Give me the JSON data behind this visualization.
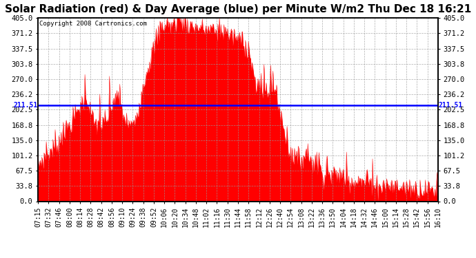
{
  "title": "Solar Radiation (red) & Day Average (blue) per Minute W/m2 Thu Dec 18 16:21",
  "copyright_text": "Copyright 2008 Cartronics.com",
  "y_min": 0.0,
  "y_max": 405.0,
  "y_ticks": [
    0.0,
    33.8,
    67.5,
    101.2,
    135.0,
    168.8,
    202.5,
    236.2,
    270.0,
    303.8,
    337.5,
    371.2,
    405.0
  ],
  "avg_value": 211.51,
  "avg_label": "211.51",
  "x_labels": [
    "07:15",
    "07:32",
    "07:46",
    "08:00",
    "08:14",
    "08:28",
    "08:42",
    "08:56",
    "09:10",
    "09:24",
    "09:38",
    "09:52",
    "10:06",
    "10:20",
    "10:34",
    "10:48",
    "11:02",
    "11:16",
    "11:30",
    "11:44",
    "11:58",
    "12:12",
    "12:26",
    "12:40",
    "12:54",
    "13:08",
    "13:22",
    "13:36",
    "13:50",
    "14:04",
    "14:18",
    "14:32",
    "14:46",
    "15:00",
    "15:14",
    "15:28",
    "15:42",
    "15:56",
    "16:10"
  ],
  "fill_color": "#FF0000",
  "line_color": "#0000FF",
  "bg_color": "#FFFFFF",
  "grid_color": "#999999",
  "title_fontsize": 11,
  "tick_fontsize": 7.5,
  "copyright_fontsize": 6.5
}
